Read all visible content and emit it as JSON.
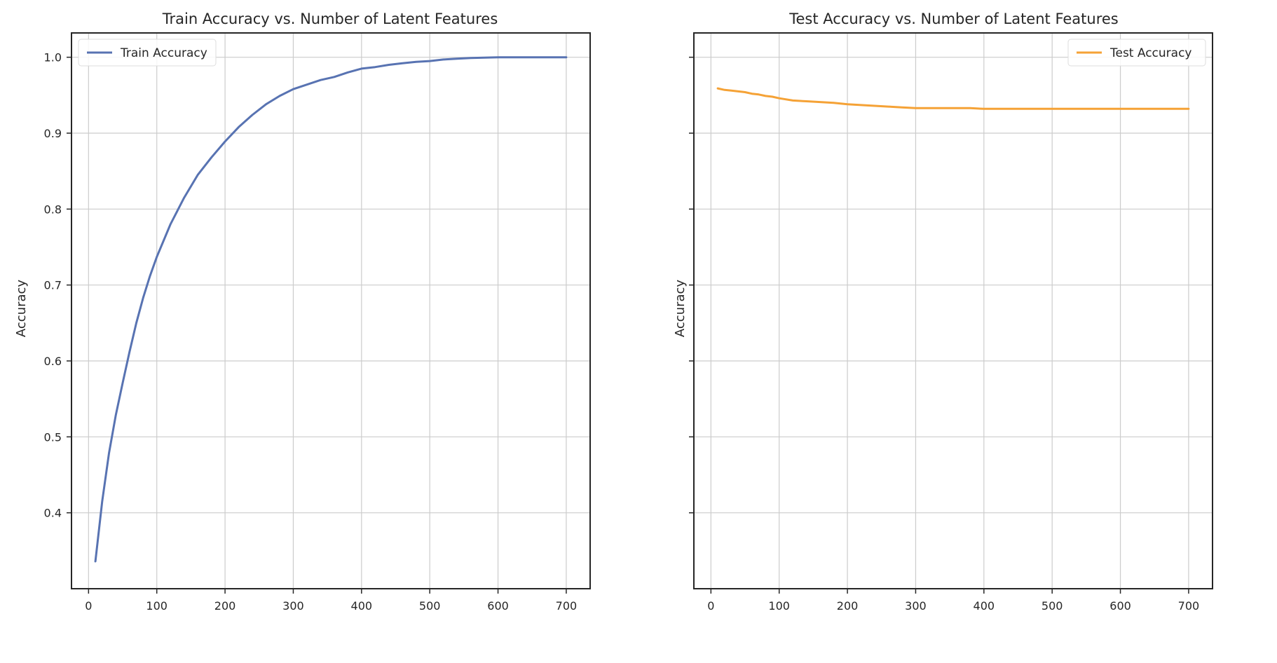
{
  "chart_data": [
    {
      "type": "line",
      "title": "Train Accuracy vs. Number of Latent Features",
      "xlabel": "",
      "ylabel": "Accuracy",
      "xlim": [
        -25,
        735
      ],
      "ylim": [
        0.3,
        1.032
      ],
      "xticks": [
        0,
        100,
        200,
        300,
        400,
        500,
        600,
        700
      ],
      "xtick_labels": [
        "0",
        "100",
        "200",
        "300",
        "400",
        "500",
        "600",
        "700"
      ],
      "yticks": [
        0.4,
        0.5,
        0.6,
        0.7,
        0.8,
        0.9,
        1.0
      ],
      "ytick_labels": [
        "0.4",
        "0.5",
        "0.6",
        "0.7",
        "0.8",
        "0.9",
        "1.0"
      ],
      "show_ytick_labels": true,
      "grid": true,
      "legend_position": "top-left",
      "series": [
        {
          "name": "Train Accuracy",
          "color": "#5873b2",
          "x": [
            10,
            20,
            30,
            40,
            50,
            60,
            70,
            80,
            90,
            100,
            120,
            140,
            160,
            180,
            200,
            220,
            240,
            260,
            280,
            300,
            320,
            340,
            360,
            380,
            400,
            420,
            440,
            460,
            480,
            500,
            520,
            540,
            560,
            580,
            600,
            620,
            640,
            660,
            680,
            700
          ],
          "y": [
            0.336,
            0.415,
            0.479,
            0.529,
            0.571,
            0.612,
            0.65,
            0.683,
            0.712,
            0.737,
            0.78,
            0.815,
            0.845,
            0.868,
            0.889,
            0.908,
            0.924,
            0.938,
            0.949,
            0.958,
            0.964,
            0.97,
            0.974,
            0.98,
            0.985,
            0.987,
            0.99,
            0.992,
            0.994,
            0.995,
            0.997,
            0.998,
            0.999,
            0.9995,
            1.0,
            1.0,
            1.0,
            1.0,
            1.0,
            1.0
          ]
        }
      ]
    },
    {
      "type": "line",
      "title": "Test Accuracy vs. Number of Latent Features",
      "xlabel": "",
      "ylabel": "Accuracy",
      "xlim": [
        -25,
        735
      ],
      "ylim": [
        0.3,
        1.032
      ],
      "xticks": [
        0,
        100,
        200,
        300,
        400,
        500,
        600,
        700
      ],
      "xtick_labels": [
        "0",
        "100",
        "200",
        "300",
        "400",
        "500",
        "600",
        "700"
      ],
      "yticks": [
        0.4,
        0.5,
        0.6,
        0.7,
        0.8,
        0.9,
        1.0
      ],
      "ytick_labels": [
        "0.4",
        "0.5",
        "0.6",
        "0.7",
        "0.8",
        "0.9",
        "1.0"
      ],
      "show_ytick_labels": false,
      "grid": true,
      "legend_position": "top-right",
      "series": [
        {
          "name": "Test Accuracy",
          "color": "#f5a236",
          "x": [
            10,
            20,
            30,
            40,
            50,
            60,
            70,
            80,
            90,
            100,
            120,
            140,
            160,
            180,
            200,
            220,
            240,
            260,
            280,
            300,
            320,
            340,
            360,
            380,
            400,
            450,
            500,
            550,
            600,
            650,
            700
          ],
          "y": [
            0.959,
            0.957,
            0.956,
            0.955,
            0.954,
            0.952,
            0.951,
            0.949,
            0.948,
            0.946,
            0.943,
            0.942,
            0.941,
            0.94,
            0.938,
            0.937,
            0.936,
            0.935,
            0.934,
            0.933,
            0.933,
            0.933,
            0.933,
            0.933,
            0.932,
            0.932,
            0.932,
            0.932,
            0.932,
            0.932,
            0.932
          ]
        }
      ]
    }
  ]
}
